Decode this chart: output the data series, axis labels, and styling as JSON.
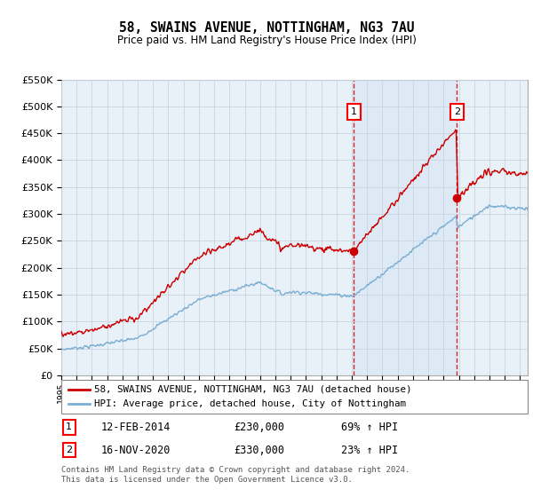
{
  "title": "58, SWAINS AVENUE, NOTTINGHAM, NG3 7AU",
  "subtitle": "Price paid vs. HM Land Registry's House Price Index (HPI)",
  "legend_line1": "58, SWAINS AVENUE, NOTTINGHAM, NG3 7AU (detached house)",
  "legend_line2": "HPI: Average price, detached house, City of Nottingham",
  "sale1_date": "12-FEB-2014",
  "sale1_price": "£230,000",
  "sale1_hpi": "69% ↑ HPI",
  "sale2_date": "16-NOV-2020",
  "sale2_price": "£330,000",
  "sale2_hpi": "23% ↑ HPI",
  "footer": "Contains HM Land Registry data © Crown copyright and database right 2024.\nThis data is licensed under the Open Government Licence v3.0.",
  "sale1_year": 2014.12,
  "sale2_year": 2020.88,
  "sale1_value": 230000,
  "sale2_value": 330000,
  "red_color": "#cc0000",
  "blue_color": "#7bafd4",
  "shade_color": "#dce9f5",
  "background_color": "#e8f0f8",
  "grid_color": "#c8d4e0",
  "ylim": [
    0,
    550000
  ],
  "xlim_start": 1995.0,
  "xlim_end": 2025.5
}
